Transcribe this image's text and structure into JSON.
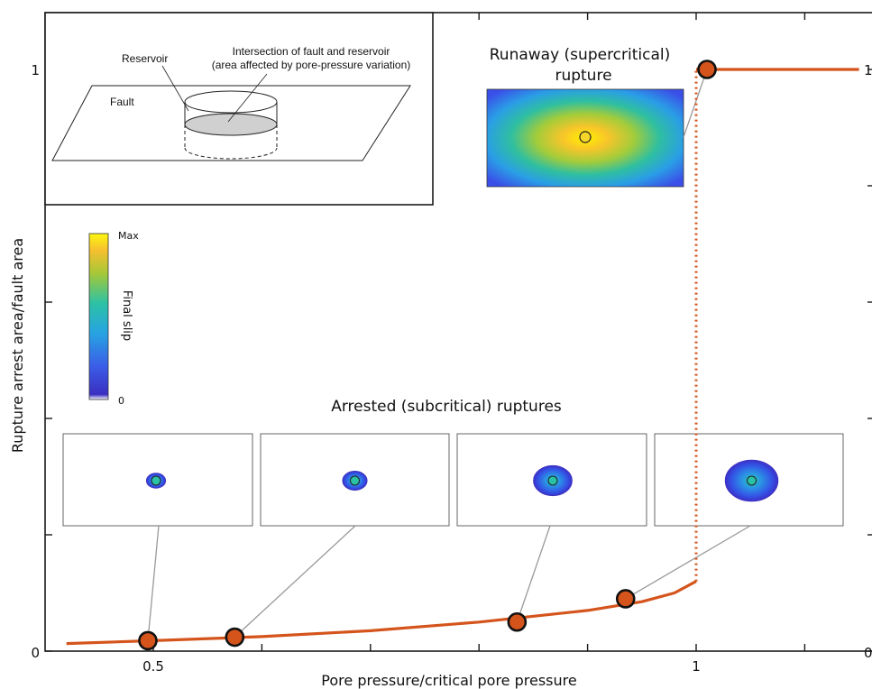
{
  "chart_data": {
    "type": "line",
    "xlabel": "Pore pressure/critical pore pressure",
    "ylabel": "Rupture arrest area/fault area",
    "xlim": [
      0.42,
      1.15
    ],
    "ylim": [
      0,
      1.05
    ],
    "x_ticks": [
      0.5,
      1
    ],
    "x_tick_labels": [
      "0.5",
      "1"
    ],
    "y_ticks": [
      0,
      1
    ],
    "y_tick_labels": [
      "0",
      "1"
    ],
    "right_y_tick_labels": [
      "0",
      "1"
    ],
    "series": [
      {
        "color": "#d4541c",
        "segments": {
          "arrested_curve": {
            "x": [
              0.42,
              0.5,
              0.6,
              0.7,
              0.8,
              0.9,
              0.95,
              0.98,
              1.0
            ],
            "y": [
              0.013,
              0.018,
              0.025,
              0.035,
              0.05,
              0.07,
              0.085,
              0.1,
              0.12
            ]
          },
          "jump": {
            "x": 1.0,
            "y": [
              0.12,
              1.0
            ]
          },
          "runaway": {
            "x": [
              1.0,
              1.15
            ],
            "y": [
              1.0,
              1.0
            ]
          }
        }
      }
    ],
    "markers": [
      {
        "x": 0.495,
        "y": 0.018
      },
      {
        "x": 0.575,
        "y": 0.024
      },
      {
        "x": 0.835,
        "y": 0.05
      },
      {
        "x": 0.935,
        "y": 0.09
      },
      {
        "x": 1.01,
        "y": 1.0
      }
    ],
    "annotations": {
      "runaway_title": [
        "Runaway (supercritical)",
        "rupture"
      ],
      "arrested_title": "Arrested (subcritical) ruptures"
    },
    "colorbar": {
      "label": "Final slip",
      "max_label": "Max",
      "min_label": "0"
    },
    "inset": {
      "reservoir_label": "Reservoir",
      "fault_label": "Fault",
      "intersection_label_line1": "Intersection of fault and reservoir",
      "intersection_label_line2": "(area affected by pore-pressure variation)"
    },
    "arrested_maps": [
      {
        "relative_size": 0.11
      },
      {
        "relative_size": 0.14
      },
      {
        "relative_size": 0.22
      },
      {
        "relative_size": 0.3
      }
    ]
  }
}
